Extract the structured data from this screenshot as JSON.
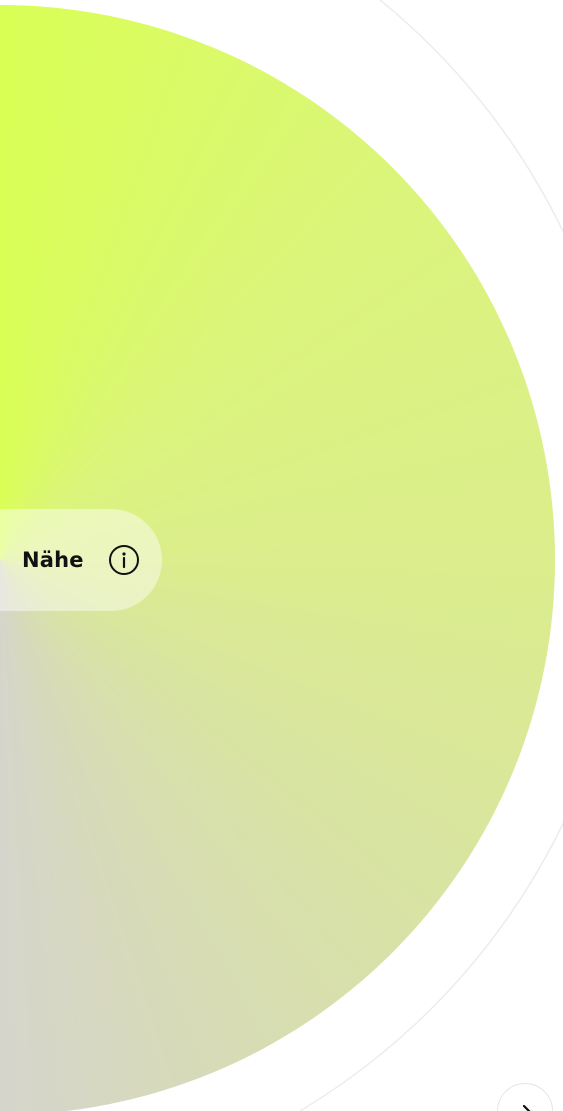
{
  "label": "Nähe"
}
